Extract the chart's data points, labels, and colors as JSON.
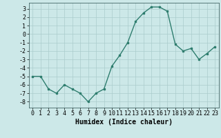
{
  "x": [
    0,
    1,
    2,
    3,
    4,
    5,
    6,
    7,
    8,
    9,
    10,
    11,
    12,
    13,
    14,
    15,
    16,
    17,
    18,
    19,
    20,
    21,
    22,
    23
  ],
  "y": [
    -5,
    -5,
    -6.5,
    -7,
    -6,
    -6.5,
    -7,
    -8,
    -7,
    -6.5,
    -3.8,
    -2.5,
    -1,
    1.5,
    2.5,
    3.2,
    3.2,
    2.7,
    -1.2,
    -2.0,
    -1.7,
    -3.0,
    -2.3,
    -1.5
  ],
  "line_color": "#2e7d6e",
  "marker": "s",
  "markersize": 2.0,
  "linewidth": 1.0,
  "xlabel": "Humidex (Indice chaleur)",
  "xlim": [
    -0.5,
    23.5
  ],
  "ylim": [
    -8.7,
    3.7
  ],
  "yticks": [
    3,
    2,
    1,
    0,
    -1,
    -2,
    -3,
    -4,
    -5,
    -6,
    -7,
    -8
  ],
  "xticks": [
    0,
    1,
    2,
    3,
    4,
    5,
    6,
    7,
    8,
    9,
    10,
    11,
    12,
    13,
    14,
    15,
    16,
    17,
    18,
    19,
    20,
    21,
    22,
    23
  ],
  "bg_color": "#cce8e8",
  "grid_color": "#aacccc",
  "xlabel_fontsize": 7.0,
  "tick_fontsize": 6.0
}
